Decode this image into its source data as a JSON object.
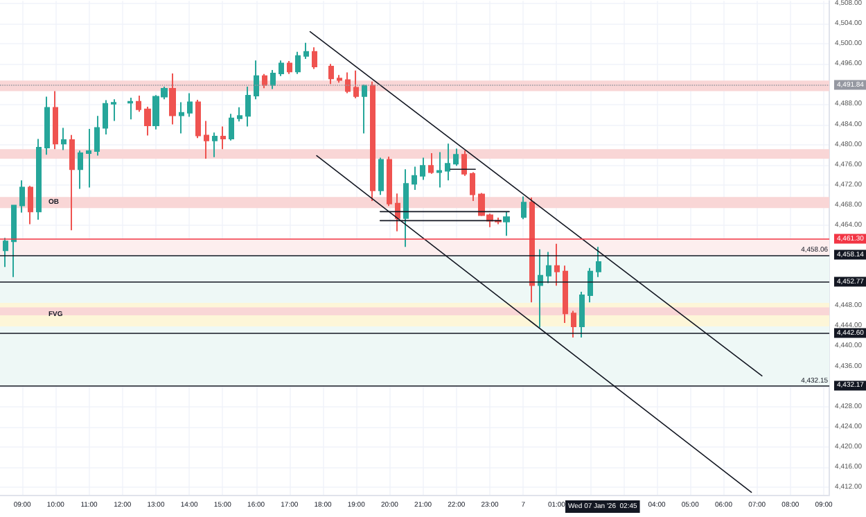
{
  "chart_data": {
    "type": "candlestick",
    "grid": true,
    "x": [
      "2026-01-06T08:30",
      "2026-01-06T08:45",
      "2026-01-06T09:00",
      "2026-01-06T09:15",
      "2026-01-06T09:30",
      "2026-01-06T09:45",
      "2026-01-06T10:00",
      "2026-01-06T10:15",
      "2026-01-06T10:30",
      "2026-01-06T10:45",
      "2026-01-06T11:00",
      "2026-01-06T11:15",
      "2026-01-06T11:30",
      "2026-01-06T11:45",
      "2026-01-06T12:15",
      "2026-01-06T12:30",
      "2026-01-06T12:45",
      "2026-01-06T13:00",
      "2026-01-06T13:15",
      "2026-01-06T13:30",
      "2026-01-06T13:45",
      "2026-01-06T14:00",
      "2026-01-06T14:15",
      "2026-01-06T14:30",
      "2026-01-06T14:45",
      "2026-01-06T15:00",
      "2026-01-06T15:15",
      "2026-01-06T15:30",
      "2026-01-06T15:45",
      "2026-01-06T16:00",
      "2026-01-06T16:15",
      "2026-01-06T16:30",
      "2026-01-06T16:45",
      "2026-01-06T17:00",
      "2026-01-06T17:15",
      "2026-01-06T17:30",
      "2026-01-06T17:45",
      "2026-01-06T18:15",
      "2026-01-06T18:30",
      "2026-01-06T18:45",
      "2026-01-06T19:00",
      "2026-01-06T19:15",
      "2026-01-06T19:30",
      "2026-01-06T19:45",
      "2026-01-06T20:00",
      "2026-01-06T20:15",
      "2026-01-06T20:30",
      "2026-01-06T20:45",
      "2026-01-06T21:00",
      "2026-01-06T21:15",
      "2026-01-06T21:30",
      "2026-01-06T21:45",
      "2026-01-06T22:00",
      "2026-01-06T22:15",
      "2026-01-06T22:30",
      "2026-01-06T22:45",
      "2026-01-06T23:00",
      "2026-01-06T23:15",
      "2026-01-06T23:30",
      "2026-01-07T00:00",
      "2026-01-07T00:15",
      "2026-01-07T00:30",
      "2026-01-07T00:45",
      "2026-01-07T01:00",
      "2026-01-07T01:15",
      "2026-01-07T01:30",
      "2026-01-07T01:45",
      "2026-01-07T02:00",
      "2026-01-07T02:15"
    ],
    "ohlc": [
      [
        4459.0,
        4461.5,
        4455.7,
        4460.8
      ],
      [
        4460.8,
        4468.0,
        4453.7,
        4467.9
      ],
      [
        4467.9,
        4472.9,
        4466.5,
        4471.5
      ],
      [
        4471.5,
        4471.8,
        4464.2,
        4466.7
      ],
      [
        4466.7,
        4481.1,
        4465.1,
        4479.4
      ],
      [
        4479.4,
        4489.5,
        4478.0,
        4487.3
      ],
      [
        4487.3,
        4490.6,
        4479.1,
        4480.2
      ],
      [
        4480.2,
        4483.3,
        4478.9,
        4480.9
      ],
      [
        4480.9,
        4481.9,
        4463.0,
        4475.1
      ],
      [
        4475.1,
        4478.8,
        4471.2,
        4478.3
      ],
      [
        4478.3,
        4483.1,
        4471.5,
        4478.7
      ],
      [
        4478.7,
        4485.7,
        4477.8,
        4483.3
      ],
      [
        4483.3,
        4488.8,
        4482.0,
        4488.1
      ],
      [
        4488.1,
        4489.0,
        4484.7,
        4488.3
      ],
      [
        4488.3,
        4489.3,
        4485.0,
        4488.5
      ],
      [
        4488.5,
        4489.7,
        4486.5,
        4487.0
      ],
      [
        4487.0,
        4487.5,
        4481.8,
        4483.8
      ],
      [
        4483.8,
        4489.8,
        4483.0,
        4489.5
      ],
      [
        4489.5,
        4491.5,
        4489.0,
        4491.1
      ],
      [
        4491.1,
        4494.1,
        4484.0,
        4485.8
      ],
      [
        4485.8,
        4488.4,
        4482.2,
        4486.3
      ],
      [
        4486.3,
        4490.2,
        4485.5,
        4488.4
      ],
      [
        4488.4,
        4488.9,
        4481.3,
        4481.8
      ],
      [
        4481.8,
        4484.7,
        4477.2,
        4480.8
      ],
      [
        4480.8,
        4482.4,
        4477.5,
        4481.6
      ],
      [
        4481.6,
        4483.6,
        4479.1,
        4481.2
      ],
      [
        4481.2,
        4486.1,
        4480.8,
        4485.2
      ],
      [
        4485.2,
        4487.4,
        4484.6,
        4485.7
      ],
      [
        4485.7,
        4491.5,
        4483.6,
        4489.7
      ],
      [
        4489.7,
        4496.7,
        4489.0,
        4493.6
      ],
      [
        4493.6,
        4494.0,
        4491.2,
        4491.8
      ],
      [
        4491.8,
        4494.8,
        4491.0,
        4494.1
      ],
      [
        4494.1,
        4496.7,
        4493.6,
        4496.1
      ],
      [
        4496.1,
        4496.6,
        4494.0,
        4494.5
      ],
      [
        4494.5,
        4498.4,
        4494.0,
        4497.6
      ],
      [
        4497.6,
        4500.2,
        4497.0,
        4498.4
      ],
      [
        4498.4,
        4499.3,
        4495.0,
        4495.5
      ],
      [
        4495.5,
        4496.0,
        4492.0,
        4493.1
      ],
      [
        4493.1,
        4493.8,
        4492.3,
        4492.8
      ],
      [
        4492.8,
        4494.3,
        4490.2,
        4490.6
      ],
      [
        4491.3,
        4494.7,
        4489.2,
        4489.6
      ],
      [
        4489.6,
        4491.9,
        4482.2,
        4491.7
      ],
      [
        4491.7,
        4492.5,
        4468.8,
        4470.9
      ],
      [
        4470.9,
        4477.4,
        4470.0,
        4477.0
      ],
      [
        4477.0,
        4477.6,
        4467.8,
        4468.3
      ],
      [
        4468.3,
        4470.3,
        4462.8,
        4465.4
      ],
      [
        4465.4,
        4475.1,
        4459.7,
        4472.2
      ],
      [
        4472.2,
        4475.6,
        4471.0,
        4473.8
      ],
      [
        4473.8,
        4477.4,
        4473.0,
        4475.8
      ],
      [
        4475.8,
        4478.3,
        4474.2,
        4474.5
      ],
      [
        4474.5,
        4478.5,
        4471.5,
        4474.8
      ],
      [
        4474.8,
        4480.2,
        4472.9,
        4476.2
      ],
      [
        4476.2,
        4479.2,
        4475.8,
        4478.0
      ],
      [
        4478.0,
        4478.8,
        4473.8,
        4474.2
      ],
      [
        4474.2,
        4474.5,
        4468.8,
        4470.1
      ],
      [
        4470.1,
        4470.4,
        4465.8,
        4466.0
      ],
      [
        4466.0,
        4466.3,
        4463.6,
        4464.9
      ],
      [
        4464.9,
        4465.5,
        4464.2,
        4464.7
      ],
      [
        4464.7,
        4466.7,
        4461.9,
        4465.6
      ],
      [
        4465.6,
        4469.7,
        4465.2,
        4468.5
      ],
      [
        4468.5,
        4469.5,
        4448.7,
        4452.1
      ],
      [
        4452.1,
        4459.2,
        4443.7,
        4454.0
      ],
      [
        4454.0,
        4458.7,
        4452.5,
        4455.9
      ],
      [
        4455.9,
        4460.3,
        4452.0,
        4454.8
      ],
      [
        4454.8,
        4456.0,
        4444.6,
        4446.5
      ],
      [
        4446.5,
        4447.0,
        4441.7,
        4443.9
      ],
      [
        4443.9,
        4450.8,
        4441.7,
        4450.1
      ],
      [
        4450.1,
        4455.5,
        4448.7,
        4454.8
      ],
      [
        4454.8,
        4459.7,
        4453.7,
        4456.7
      ]
    ],
    "colors": [
      "#26a69a",
      "#26a69a",
      "#26a69a",
      "#ef5350",
      "#26a69a",
      "#26a69a",
      "#ef5350",
      "#26a69a",
      "#ef5350",
      "#26a69a",
      "#26a69a",
      "#26a69a",
      "#26a69a",
      "#26a69a",
      "#26a69a",
      "#ef5350",
      "#ef5350",
      "#26a69a",
      "#26a69a",
      "#ef5350",
      "#26a69a",
      "#26a69a",
      "#ef5350",
      "#ef5350",
      "#26a69a",
      "#ef5350",
      "#26a69a",
      "#26a69a",
      "#26a69a",
      "#26a69a",
      "#ef5350",
      "#26a69a",
      "#26a69a",
      "#ef5350",
      "#26a69a",
      "#26a69a",
      "#ef5350",
      "#ef5350",
      "#ef5350",
      "#ef5350",
      "#ef5350",
      "#26a69a",
      "#ef5350",
      "#26a69a",
      "#ef5350",
      "#ef5350",
      "#26a69a",
      "#26a69a",
      "#26a69a",
      "#ef5350",
      "#26a69a",
      "#26a69a",
      "#26a69a",
      "#ef5350",
      "#ef5350",
      "#ef5350",
      "#ef5350",
      "#ef5350",
      "#26a69a",
      "#26a69a",
      "#ef5350",
      "#26a69a",
      "#26a69a",
      "#ef5350",
      "#ef5350",
      "#ef5350",
      "#26a69a",
      "#26a69a",
      "#26a69a"
    ],
    "series": [
      {
        "type": "line",
        "color": "#131722",
        "x": [
          "2026-01-06T17:37",
          "2026-01-07T07:09"
        ],
        "values": [
          4502.4,
          4434.1
        ]
      },
      {
        "type": "line",
        "color": "#131722",
        "x": [
          "2026-01-06T17:49",
          "2026-01-07T06:50"
        ],
        "values": [
          4477.8,
          4411
        ]
      },
      {
        "type": "line",
        "color": "#131722",
        "x": [
          "2026-01-06T19:43",
          "2026-01-06T23:35"
        ],
        "values": [
          4466.7,
          4466.7
        ]
      },
      {
        "type": "line",
        "color": "#131722",
        "x": [
          "2026-01-06T19:43",
          "2026-01-06T23:20"
        ],
        "values": [
          4464.9,
          4464.9
        ]
      },
      {
        "type": "line",
        "color": "#131722",
        "x": [
          "2026-01-06T21:49",
          "2026-01-06T22:34"
        ],
        "values": [
          4475.1,
          4475.1
        ]
      }
    ],
    "xlim": [
      "2026-01-06T08:20",
      "2026-01-07T09:10"
    ],
    "xticks": [
      {
        "value": "2026-01-06T09:00",
        "label": "09:00"
      },
      {
        "value": "2026-01-06T10:00",
        "label": "10:00"
      },
      {
        "value": "2026-01-06T11:00",
        "label": "11:00"
      },
      {
        "value": "2026-01-06T12:00",
        "label": "12:00"
      },
      {
        "value": "2026-01-06T13:00",
        "label": "13:00"
      },
      {
        "value": "2026-01-06T14:00",
        "label": "14:00"
      },
      {
        "value": "2026-01-06T15:00",
        "label": "15:00"
      },
      {
        "value": "2026-01-06T16:00",
        "label": "16:00"
      },
      {
        "value": "2026-01-06T17:00",
        "label": "17:00"
      },
      {
        "value": "2026-01-06T18:00",
        "label": "18:00"
      },
      {
        "value": "2026-01-06T19:00",
        "label": "19:00"
      },
      {
        "value": "2026-01-06T20:00",
        "label": "20:00"
      },
      {
        "value": "2026-01-06T21:00",
        "label": "21:00"
      },
      {
        "value": "2026-01-06T22:00",
        "label": "22:00"
      },
      {
        "value": "2026-01-06T23:00",
        "label": "23:00"
      },
      {
        "value": "2026-01-07T00:00",
        "label": "7"
      },
      {
        "value": "2026-01-07T01:00",
        "label": "01:00"
      },
      {
        "value": "2026-01-07T02:00",
        "label": null
      },
      {
        "value": "2026-01-07T03:00",
        "label": null
      },
      {
        "value": "2026-01-07T04:00",
        "label": "04:00"
      },
      {
        "value": "2026-01-07T05:00",
        "label": "05:00"
      },
      {
        "value": "2026-01-07T06:00",
        "label": "06:00"
      },
      {
        "value": "2026-01-07T07:00",
        "label": "07:00"
      },
      {
        "value": "2026-01-07T08:00",
        "label": "08:00"
      },
      {
        "value": "2026-01-07T09:00",
        "label": "09:00"
      }
    ],
    "ylim": [
      4410.5,
      4508.5
    ],
    "yticks": [
      {
        "value": 4412,
        "label": "4,412.00"
      },
      {
        "value": 4416,
        "label": "4,416.00"
      },
      {
        "value": 4420,
        "label": "4,420.00"
      },
      {
        "value": 4424,
        "label": "4,424.00"
      },
      {
        "value": 4428,
        "label": "4,428.00"
      },
      {
        "value": 4432,
        "label": null
      },
      {
        "value": 4436,
        "label": "4,436.00"
      },
      {
        "value": 4440,
        "label": "4,440.00"
      },
      {
        "value": 4444,
        "label": "4,444.00"
      },
      {
        "value": 4448,
        "label": "4,448.00"
      },
      {
        "value": 4464,
        "label": "4,464.00"
      },
      {
        "value": 4468,
        "label": "4,468.00"
      },
      {
        "value": 4472,
        "label": "4,472.00"
      },
      {
        "value": 4476,
        "label": "4,476.00"
      },
      {
        "value": 4480,
        "label": "4,480.00"
      },
      {
        "value": 4484,
        "label": "4,484.00"
      },
      {
        "value": 4488,
        "label": "4,488.00"
      },
      {
        "value": 4492,
        "label": null
      },
      {
        "value": 4496,
        "label": "4,496.00"
      },
      {
        "value": 4500,
        "label": "4,500.00"
      },
      {
        "value": 4504,
        "label": "4,504.00"
      },
      {
        "value": 4508,
        "label": "4,508.00"
      }
    ],
    "ref_lines": [
      {
        "axis": "y",
        "value": 4491.84,
        "label": "4,491.84",
        "color": "#9598a1",
        "line_style": "dotted"
      },
      {
        "axis": "y",
        "value": 4461.3,
        "label": "4,461.30",
        "color": "#f23645",
        "line_style": "solid"
      },
      {
        "axis": "y",
        "value": 4458.14,
        "label": "4,458.14",
        "color": "#131722",
        "line_style": "solid"
      },
      {
        "axis": "y",
        "value": 4452.77,
        "label": "4,452.77",
        "color": "#131722",
        "line_style": "solid"
      },
      {
        "axis": "y",
        "value": 4442.6,
        "label": "4,442.60",
        "color": "#131722",
        "line_style": "solid"
      },
      {
        "axis": "y",
        "value": 4432.17,
        "label": "4,432.17",
        "color": "#131722",
        "line_style": "solid"
      }
    ],
    "bands": [
      {
        "axis": "y",
        "from": 4490.6,
        "to": 4492.7,
        "color": "#f9d6d6"
      },
      {
        "axis": "y",
        "from": 4477.2,
        "to": 4479.1,
        "color": "#f9d6d6"
      },
      {
        "axis": "y",
        "from": 4467.4,
        "to": 4469.6,
        "label": "OB",
        "color": "#f9d6d6"
      },
      {
        "axis": "y",
        "from": 4461.3,
        "to": 4458.06,
        "label": "4,458.06",
        "color": "#fdeeee"
      },
      {
        "axis": "y",
        "from": 4458.06,
        "to": 4432.15,
        "label": "4,432.15",
        "color": "#eef8f6"
      },
      {
        "axis": "y",
        "from": 4443.9,
        "to": 4448.6,
        "label": "FVG",
        "color": "#fdf6d8"
      },
      {
        "axis": "y",
        "from": 4446.1,
        "to": 4447.7,
        "color": "#f9d6d6"
      }
    ],
    "annotations": [
      "Wed 07 Jan '26  02:45"
    ]
  }
}
